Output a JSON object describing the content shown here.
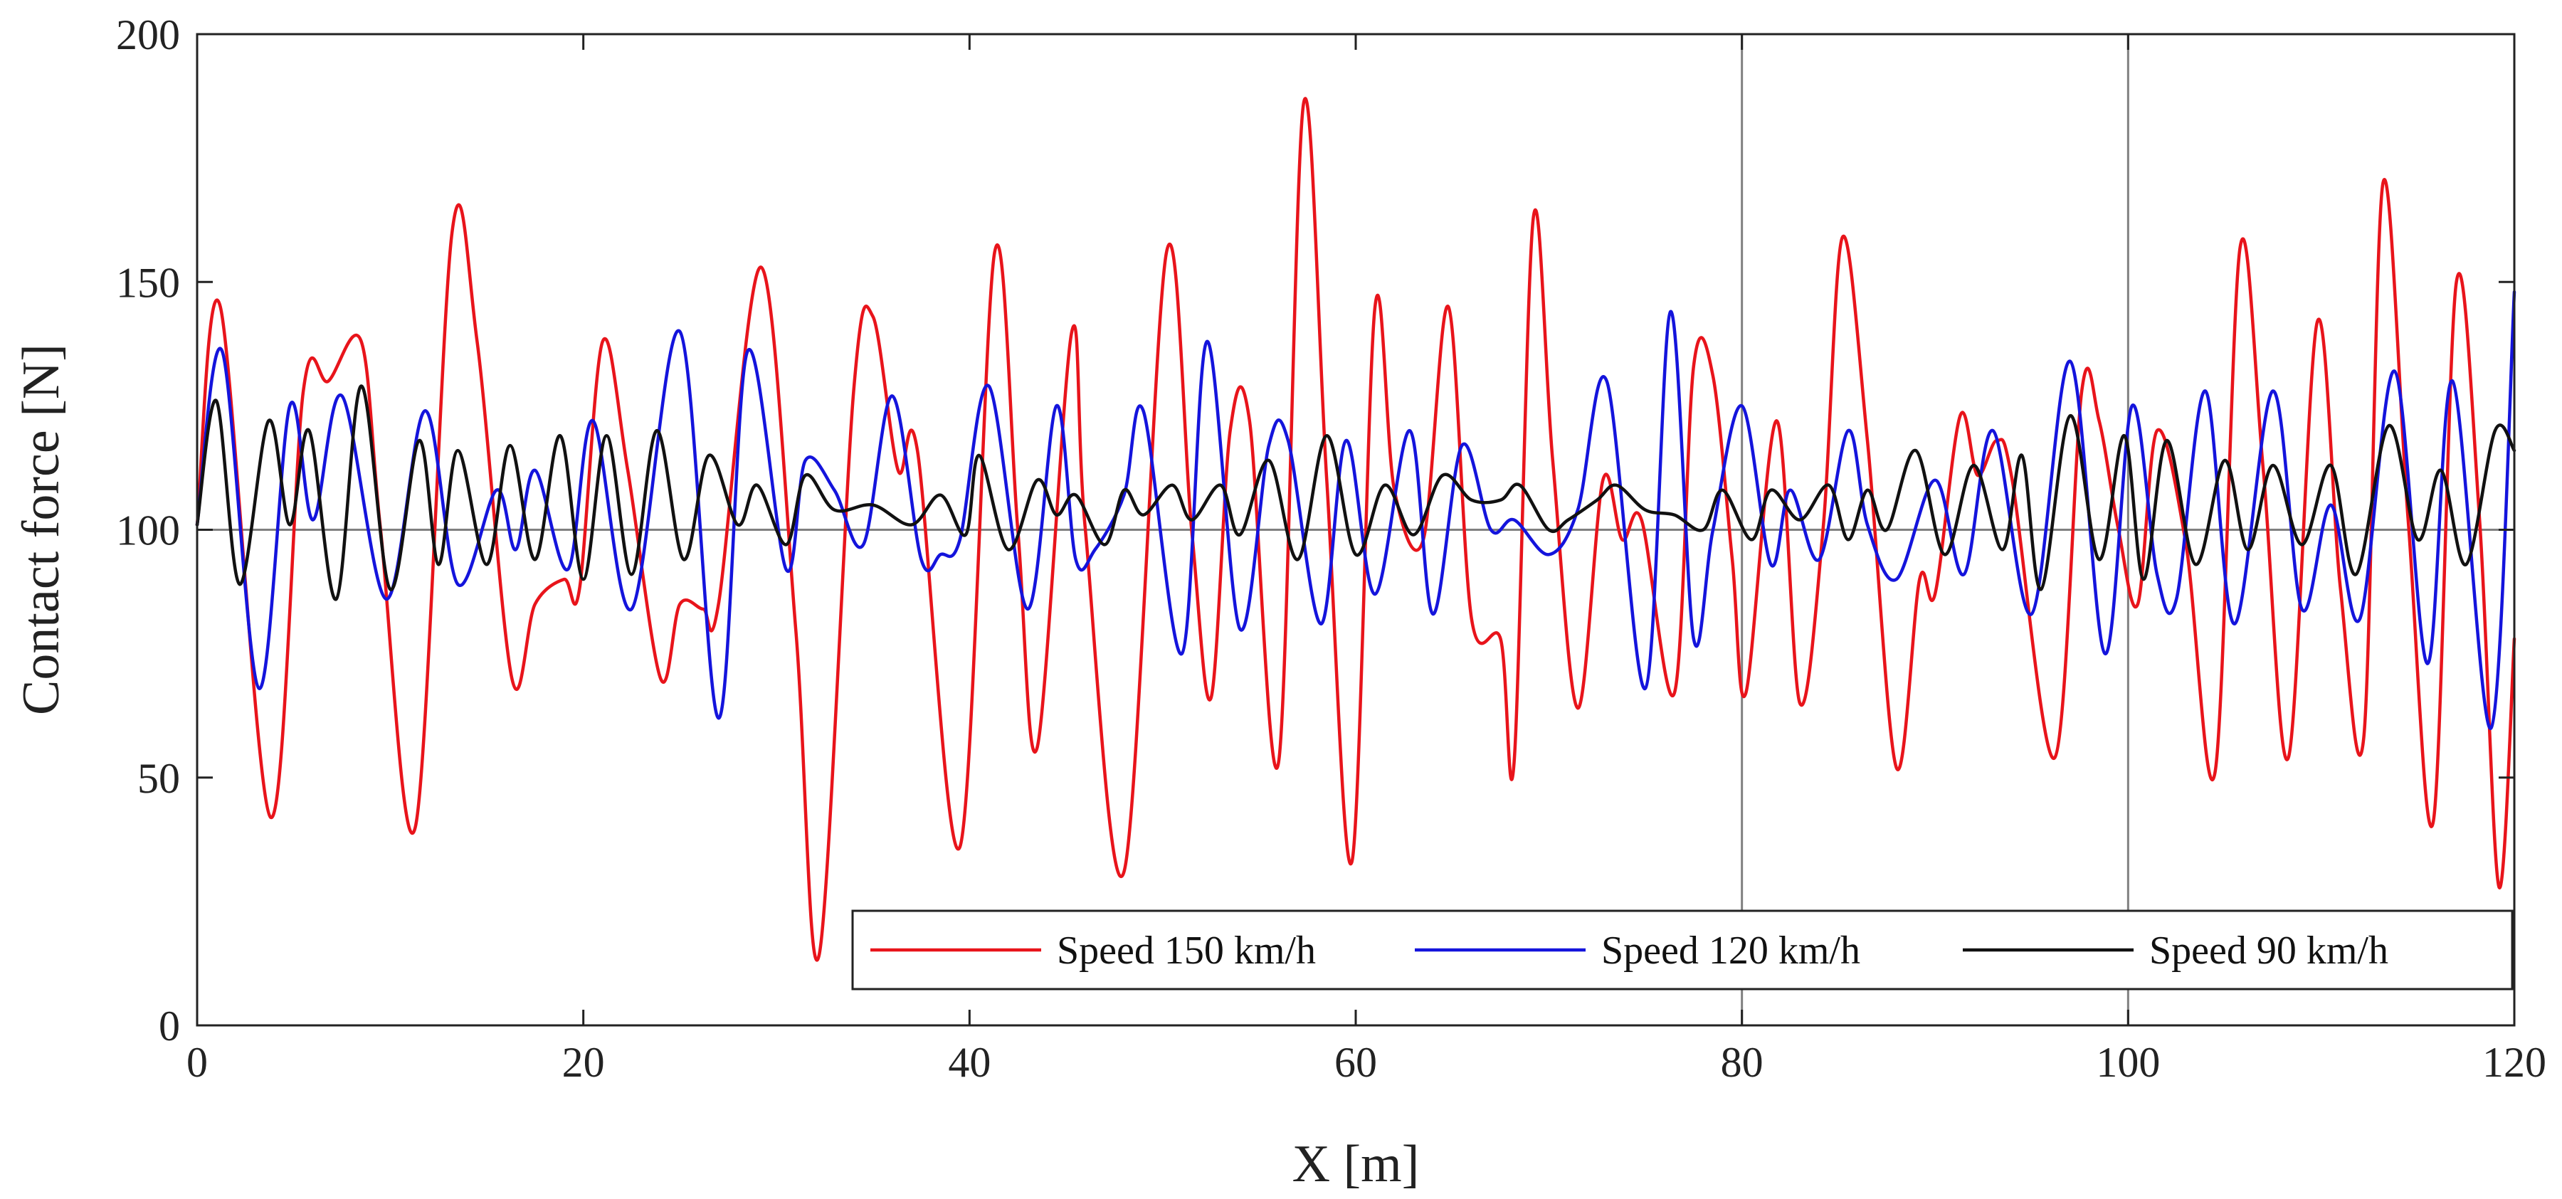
{
  "chart_data": {
    "type": "line",
    "title": "",
    "xlabel": "X [m]",
    "ylabel": "Contact force [N]",
    "xlim": [
      0,
      120
    ],
    "ylim": [
      0,
      200
    ],
    "x_ticks": [
      0,
      20,
      40,
      60,
      80,
      100,
      120
    ],
    "y_ticks": [
      0,
      50,
      100,
      150,
      200
    ],
    "x_tick_labels": [
      "0",
      "20",
      "40",
      "60",
      "80",
      "100",
      "120"
    ],
    "y_tick_labels": [
      "0",
      "50",
      "100",
      "150",
      "200"
    ],
    "reference_lines": {
      "horizontal": 100,
      "vertical": [
        80,
        100
      ],
      "color": "#808080"
    },
    "legend_position": "bottom-right",
    "series": [
      {
        "name": "Speed 150 km/h",
        "color": "#e8141b",
        "points": [
          [
            0,
            101
          ],
          [
            1.2,
            145
          ],
          [
            3.8,
            42
          ],
          [
            5.5,
            128
          ],
          [
            6.8,
            130
          ],
          [
            8.5,
            138
          ],
          [
            9.5,
            100
          ],
          [
            11.3,
            40
          ],
          [
            13.2,
            160
          ],
          [
            14.5,
            138
          ],
          [
            16.3,
            70
          ],
          [
            17.5,
            85
          ],
          [
            19,
            90
          ],
          [
            19.8,
            88
          ],
          [
            21,
            138
          ],
          [
            22.3,
            112
          ],
          [
            24,
            70
          ],
          [
            25,
            85
          ],
          [
            26.2,
            84
          ],
          [
            27,
            85
          ],
          [
            29.2,
            153
          ],
          [
            31,
            80
          ],
          [
            32.2,
            14
          ],
          [
            34,
            128
          ],
          [
            35,
            143
          ],
          [
            36.3,
            112
          ],
          [
            37.3,
            116
          ],
          [
            39.5,
            36
          ],
          [
            41.3,
            156
          ],
          [
            42.5,
            100
          ],
          [
            43.5,
            56
          ],
          [
            45.3,
            140
          ],
          [
            46,
            100
          ],
          [
            48,
            31
          ],
          [
            50.2,
            156
          ],
          [
            51.5,
            100
          ],
          [
            52.5,
            66
          ],
          [
            53.5,
            120
          ],
          [
            54.5,
            122
          ],
          [
            56,
            53
          ],
          [
            57.3,
            186
          ],
          [
            58.5,
            110
          ],
          [
            59.8,
            33
          ],
          [
            61,
            145
          ],
          [
            62,
            108
          ],
          [
            63.5,
            98
          ],
          [
            64.8,
            145
          ],
          [
            66,
            82
          ],
          [
            67.5,
            78
          ],
          [
            68.2,
            53
          ],
          [
            69.2,
            163
          ],
          [
            70.2,
            114
          ],
          [
            71.5,
            64
          ],
          [
            72.8,
            110
          ],
          [
            73.8,
            98
          ],
          [
            74.8,
            102
          ],
          [
            76.5,
            67
          ],
          [
            77.5,
            133
          ],
          [
            78.5,
            131
          ],
          [
            79.5,
            94
          ],
          [
            80.2,
            67
          ],
          [
            81.8,
            122
          ],
          [
            83,
            65
          ],
          [
            84.2,
            100
          ],
          [
            85.2,
            159
          ],
          [
            86.5,
            118
          ],
          [
            88,
            52
          ],
          [
            89.2,
            90
          ],
          [
            90,
            87
          ],
          [
            91.3,
            123
          ],
          [
            92.2,
            111
          ],
          [
            93.2,
            118
          ],
          [
            94,
            110
          ],
          [
            96.2,
            54
          ],
          [
            97.6,
            128
          ],
          [
            98.5,
            122
          ],
          [
            99.5,
            100
          ],
          [
            100.5,
            85
          ],
          [
            101.5,
            120
          ],
          [
            103,
            97
          ],
          [
            104.5,
            51
          ],
          [
            105.8,
            157
          ],
          [
            107,
            112
          ],
          [
            108.3,
            54
          ],
          [
            109.8,
            142
          ],
          [
            111,
            88
          ],
          [
            112.2,
            58
          ],
          [
            113.2,
            170
          ],
          [
            114.5,
            102
          ],
          [
            115.8,
            41
          ],
          [
            117,
            150
          ],
          [
            118.2,
            102
          ],
          [
            119.2,
            28
          ],
          [
            120,
            78
          ]
        ]
      },
      {
        "name": "Speed 120 km/h",
        "color": "#1414dc",
        "points": [
          [
            0,
            101
          ],
          [
            1.3,
            136
          ],
          [
            3.2,
            68
          ],
          [
            4.8,
            125
          ],
          [
            6,
            102
          ],
          [
            7.5,
            127
          ],
          [
            9.8,
            86
          ],
          [
            11.8,
            124
          ],
          [
            13.5,
            89
          ],
          [
            15.5,
            108
          ],
          [
            16.5,
            96
          ],
          [
            17.5,
            112
          ],
          [
            19.2,
            92
          ],
          [
            20.5,
            122
          ],
          [
            22.5,
            84
          ],
          [
            25,
            140
          ],
          [
            27,
            62
          ],
          [
            28.5,
            136
          ],
          [
            30.5,
            92
          ],
          [
            31.5,
            114
          ],
          [
            33,
            108
          ],
          [
            34.5,
            97
          ],
          [
            36,
            127
          ],
          [
            37.5,
            94
          ],
          [
            38.5,
            95
          ],
          [
            39.5,
            98
          ],
          [
            41,
            129
          ],
          [
            43,
            84
          ],
          [
            44.5,
            125
          ],
          [
            45.5,
            94
          ],
          [
            46.5,
            96
          ],
          [
            48,
            107
          ],
          [
            49,
            124
          ],
          [
            51,
            75
          ],
          [
            52.3,
            138
          ],
          [
            54,
            80
          ],
          [
            55.5,
            117
          ],
          [
            56.5,
            118
          ],
          [
            58.2,
            81
          ],
          [
            59.5,
            118
          ],
          [
            61,
            87
          ],
          [
            62.8,
            120
          ],
          [
            64,
            83
          ],
          [
            65.5,
            117
          ],
          [
            67,
            100
          ],
          [
            68.2,
            102
          ],
          [
            70,
            95
          ],
          [
            71.5,
            104
          ],
          [
            73,
            130
          ],
          [
            75,
            68
          ],
          [
            76.3,
            144
          ],
          [
            77.5,
            78
          ],
          [
            78.5,
            100
          ],
          [
            80,
            125
          ],
          [
            81.5,
            93
          ],
          [
            82.5,
            108
          ],
          [
            84,
            94
          ],
          [
            85.5,
            120
          ],
          [
            86.5,
            101
          ],
          [
            88,
            90
          ],
          [
            90,
            110
          ],
          [
            91.5,
            91
          ],
          [
            93,
            120
          ],
          [
            95,
            83
          ],
          [
            97,
            134
          ],
          [
            98.8,
            75
          ],
          [
            100.2,
            125
          ],
          [
            101.5,
            91
          ],
          [
            102.5,
            86
          ],
          [
            104,
            128
          ],
          [
            105.5,
            81
          ],
          [
            107.5,
            128
          ],
          [
            109,
            84
          ],
          [
            110.5,
            105
          ],
          [
            112,
            82
          ],
          [
            113.8,
            132
          ],
          [
            115.5,
            73
          ],
          [
            116.8,
            130
          ],
          [
            118.8,
            60
          ],
          [
            120,
            148
          ]
        ]
      },
      {
        "name": "Speed 90 km/h",
        "color": "#111111",
        "points": [
          [
            0,
            101
          ],
          [
            1,
            126
          ],
          [
            2.2,
            89
          ],
          [
            3.7,
            122
          ],
          [
            4.8,
            101
          ],
          [
            5.8,
            120
          ],
          [
            7.2,
            86
          ],
          [
            8.5,
            129
          ],
          [
            10,
            88
          ],
          [
            11.5,
            118
          ],
          [
            12.5,
            93
          ],
          [
            13.5,
            116
          ],
          [
            15,
            93
          ],
          [
            16.2,
            117
          ],
          [
            17.5,
            94
          ],
          [
            18.8,
            119
          ],
          [
            20,
            90
          ],
          [
            21.2,
            119
          ],
          [
            22.5,
            91
          ],
          [
            23.8,
            120
          ],
          [
            25.2,
            94
          ],
          [
            26.5,
            115
          ],
          [
            28,
            101
          ],
          [
            29,
            109
          ],
          [
            30.5,
            97
          ],
          [
            31.5,
            111
          ],
          [
            33,
            104
          ],
          [
            35,
            105
          ],
          [
            37,
            101
          ],
          [
            38.5,
            107
          ],
          [
            39.8,
            99
          ],
          [
            40.5,
            115
          ],
          [
            42,
            96
          ],
          [
            43.5,
            110
          ],
          [
            44.5,
            103
          ],
          [
            45.5,
            107
          ],
          [
            47,
            97
          ],
          [
            48,
            108
          ],
          [
            49,
            103
          ],
          [
            50.5,
            109
          ],
          [
            51.5,
            102
          ],
          [
            53,
            109
          ],
          [
            54,
            99
          ],
          [
            55.5,
            114
          ],
          [
            57,
            94
          ],
          [
            58.5,
            119
          ],
          [
            60,
            95
          ],
          [
            61.5,
            109
          ],
          [
            63,
            99
          ],
          [
            64.5,
            111
          ],
          [
            66,
            106
          ],
          [
            67.5,
            106
          ],
          [
            68.5,
            109
          ],
          [
            70,
            100
          ],
          [
            71,
            102
          ],
          [
            72.5,
            106
          ],
          [
            73.5,
            109
          ],
          [
            75,
            104
          ],
          [
            76.5,
            103
          ],
          [
            78,
            100
          ],
          [
            79,
            108
          ],
          [
            80.5,
            98
          ],
          [
            81.5,
            108
          ],
          [
            83,
            102
          ],
          [
            84.5,
            109
          ],
          [
            85.5,
            98
          ],
          [
            86.5,
            108
          ],
          [
            87.5,
            100
          ],
          [
            89,
            116
          ],
          [
            90.5,
            95
          ],
          [
            92,
            113
          ],
          [
            93.5,
            96
          ],
          [
            94.5,
            115
          ],
          [
            95.5,
            88
          ],
          [
            97,
            123
          ],
          [
            98.5,
            94
          ],
          [
            99.8,
            119
          ],
          [
            100.8,
            90
          ],
          [
            102,
            118
          ],
          [
            103.5,
            93
          ],
          [
            105,
            114
          ],
          [
            106.2,
            96
          ],
          [
            107.5,
            113
          ],
          [
            109,
            97
          ],
          [
            110.5,
            113
          ],
          [
            111.8,
            91
          ],
          [
            113.5,
            121
          ],
          [
            115,
            98
          ],
          [
            116.2,
            112
          ],
          [
            117.5,
            93
          ],
          [
            119,
            120
          ],
          [
            120,
            116
          ]
        ]
      }
    ]
  }
}
